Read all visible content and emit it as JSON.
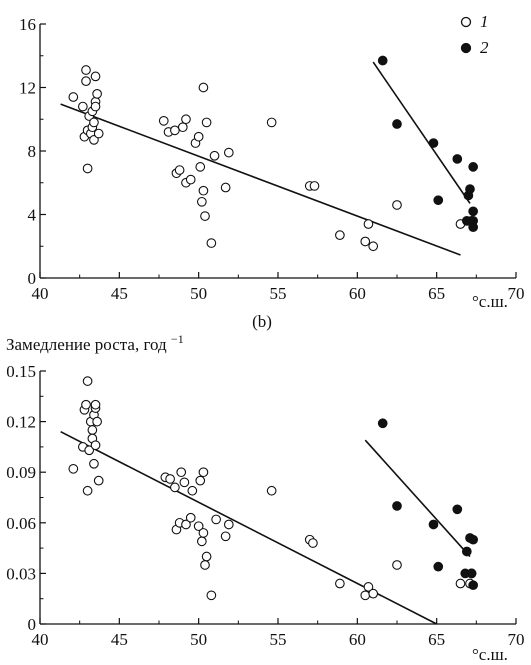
{
  "colors": {
    "foreground": "#111111",
    "open_marker_fill": "#ffffff",
    "filled_marker": "#111111",
    "background": "#ffffff"
  },
  "chart_data": [
    {
      "type": "scatter",
      "panel": "top",
      "title": "",
      "ylabel": "",
      "xlabel_unit": "°с.ш.",
      "xlim": [
        40,
        70
      ],
      "ylim": [
        0,
        16
      ],
      "xticks": [
        "40",
        "45",
        "50",
        "55",
        "60",
        "65",
        "70"
      ],
      "yticks": [
        "0",
        "4",
        "8",
        "12",
        "16"
      ],
      "legend": {
        "placement": "top-right",
        "entries": [
          "1",
          "2"
        ]
      },
      "series": [
        {
          "name": "1",
          "marker": "open-circle",
          "points": [
            [
              42.1,
              11.4
            ],
            [
              42.7,
              10.8
            ],
            [
              42.8,
              8.9
            ],
            [
              42.9,
              12.4
            ],
            [
              42.9,
              13.1
            ],
            [
              43.0,
              9.3
            ],
            [
              43.0,
              6.9
            ],
            [
              43.1,
              10.2
            ],
            [
              43.2,
              9.1
            ],
            [
              43.3,
              9.5
            ],
            [
              43.3,
              10.5
            ],
            [
              43.4,
              8.7
            ],
            [
              43.4,
              9.8
            ],
            [
              43.5,
              11.1
            ],
            [
              43.5,
              12.7
            ],
            [
              43.5,
              10.8
            ],
            [
              43.6,
              11.6
            ],
            [
              43.7,
              9.1
            ],
            [
              47.8,
              9.9
            ],
            [
              48.1,
              9.2
            ],
            [
              48.5,
              9.3
            ],
            [
              48.6,
              6.6
            ],
            [
              48.8,
              6.8
            ],
            [
              49.0,
              9.5
            ],
            [
              49.2,
              10.0
            ],
            [
              49.2,
              6.0
            ],
            [
              49.5,
              6.2
            ],
            [
              49.8,
              8.5
            ],
            [
              50.0,
              8.9
            ],
            [
              50.1,
              7.0
            ],
            [
              50.2,
              4.8
            ],
            [
              50.3,
              5.5
            ],
            [
              50.3,
              12.0
            ],
            [
              50.4,
              3.9
            ],
            [
              50.5,
              9.8
            ],
            [
              50.8,
              2.2
            ],
            [
              51.0,
              7.7
            ],
            [
              51.7,
              5.7
            ],
            [
              51.9,
              7.9
            ],
            [
              54.6,
              9.8
            ],
            [
              57.0,
              5.8
            ],
            [
              57.3,
              5.8
            ],
            [
              58.9,
              2.7
            ],
            [
              60.5,
              2.3
            ],
            [
              60.7,
              3.4
            ],
            [
              61.0,
              2.0
            ],
            [
              62.5,
              4.6
            ],
            [
              66.5,
              3.4
            ],
            [
              67.2,
              3.6
            ]
          ]
        },
        {
          "name": "2",
          "marker": "filled-circle",
          "points": [
            [
              61.6,
              13.7
            ],
            [
              62.5,
              9.7
            ],
            [
              64.8,
              8.5
            ],
            [
              65.1,
              4.9
            ],
            [
              66.3,
              7.5
            ],
            [
              66.9,
              3.6
            ],
            [
              67.0,
              5.2
            ],
            [
              67.1,
              5.6
            ],
            [
              67.3,
              4.2
            ],
            [
              67.3,
              7.0
            ],
            [
              67.3,
              3.6
            ],
            [
              67.3,
              3.2
            ]
          ]
        }
      ],
      "trend_lines": [
        {
          "series": "1",
          "from": [
            41.3,
            10.95
          ],
          "to": [
            66.5,
            1.45
          ]
        },
        {
          "series": "2",
          "from": [
            61.0,
            13.6
          ],
          "to": [
            67.1,
            4.7
          ]
        }
      ]
    },
    {
      "type": "scatter",
      "panel": "bottom",
      "panel_label": "(b)",
      "title": "",
      "ylabel": "Замедление роста, год",
      "ylabel_sup": "−1",
      "xlabel_unit": "°с.ш.",
      "xlim": [
        40,
        70
      ],
      "ylim": [
        0,
        0.15
      ],
      "xticks": [
        "40",
        "45",
        "50",
        "55",
        "60",
        "65",
        "70"
      ],
      "yticks": [
        "0",
        "0.03",
        "0.06",
        "0.09",
        "0.12",
        "0.15"
      ],
      "series": [
        {
          "name": "1",
          "marker": "open-circle",
          "points": [
            [
              42.1,
              0.092
            ],
            [
              42.7,
              0.105
            ],
            [
              42.8,
              0.127
            ],
            [
              42.9,
              0.13
            ],
            [
              43.0,
              0.144
            ],
            [
              43.0,
              0.079
            ],
            [
              43.1,
              0.103
            ],
            [
              43.2,
              0.12
            ],
            [
              43.3,
              0.115
            ],
            [
              43.3,
              0.11
            ],
            [
              43.4,
              0.124
            ],
            [
              43.4,
              0.095
            ],
            [
              43.5,
              0.106
            ],
            [
              43.5,
              0.128
            ],
            [
              43.5,
              0.13
            ],
            [
              43.6,
              0.12
            ],
            [
              43.7,
              0.085
            ],
            [
              47.9,
              0.087
            ],
            [
              48.2,
              0.086
            ],
            [
              48.5,
              0.081
            ],
            [
              48.6,
              0.056
            ],
            [
              48.8,
              0.06
            ],
            [
              48.9,
              0.09
            ],
            [
              49.1,
              0.084
            ],
            [
              49.2,
              0.059
            ],
            [
              49.5,
              0.063
            ],
            [
              49.6,
              0.079
            ],
            [
              50.0,
              0.058
            ],
            [
              50.1,
              0.085
            ],
            [
              50.2,
              0.049
            ],
            [
              50.3,
              0.09
            ],
            [
              50.3,
              0.054
            ],
            [
              50.4,
              0.035
            ],
            [
              50.5,
              0.04
            ],
            [
              50.8,
              0.017
            ],
            [
              51.1,
              0.062
            ],
            [
              51.7,
              0.052
            ],
            [
              51.9,
              0.059
            ],
            [
              54.6,
              0.079
            ],
            [
              57.0,
              0.05
            ],
            [
              57.2,
              0.048
            ],
            [
              58.9,
              0.024
            ],
            [
              60.5,
              0.017
            ],
            [
              60.7,
              0.022
            ],
            [
              61.0,
              0.018
            ],
            [
              62.5,
              0.035
            ],
            [
              66.5,
              0.024
            ],
            [
              67.1,
              0.024
            ]
          ]
        },
        {
          "name": "2",
          "marker": "filled-circle",
          "points": [
            [
              61.6,
              0.119
            ],
            [
              62.5,
              0.07
            ],
            [
              64.8,
              0.059
            ],
            [
              65.1,
              0.034
            ],
            [
              66.3,
              0.068
            ],
            [
              66.8,
              0.03
            ],
            [
              66.9,
              0.043
            ],
            [
              67.1,
              0.051
            ],
            [
              67.3,
              0.05
            ],
            [
              67.2,
              0.03
            ],
            [
              67.3,
              0.023
            ],
            [
              67.2,
              0.03
            ]
          ]
        }
      ],
      "trend_lines": [
        {
          "series": "1",
          "from": [
            41.3,
            0.114
          ],
          "to": [
            65.0,
            0.0
          ]
        },
        {
          "series": "2",
          "from": [
            60.5,
            0.109
          ],
          "to": [
            67.1,
            0.04
          ]
        }
      ]
    }
  ]
}
